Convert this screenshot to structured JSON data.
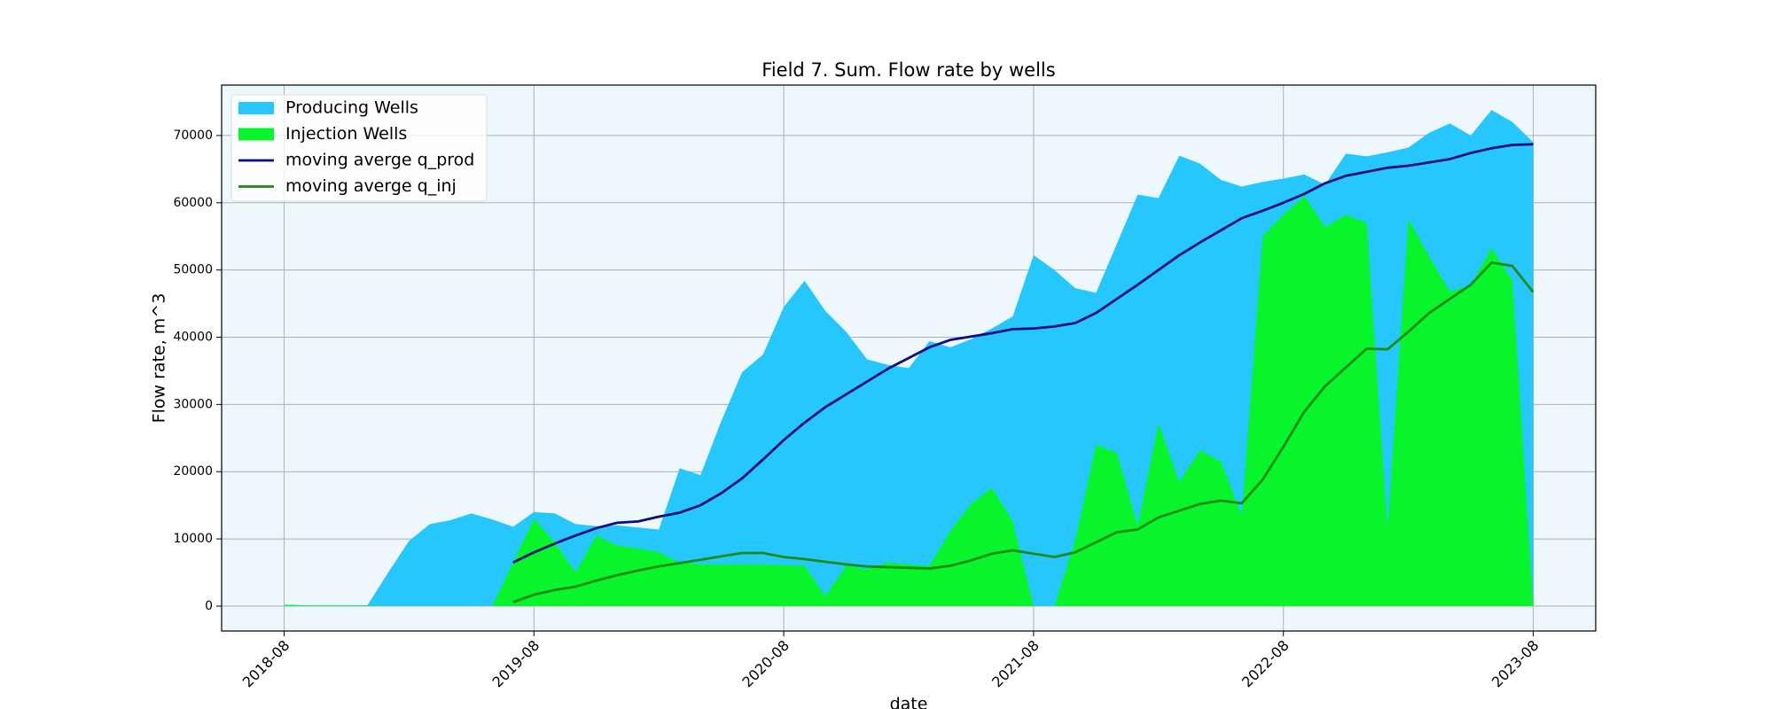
{
  "chart_data": {
    "type": "area",
    "title": "Field 7. Sum. Flow rate by wells",
    "xlabel": "date",
    "ylabel": "Flow rate, m^3",
    "x": [
      "2018-08",
      "2018-09",
      "2018-10",
      "2018-11",
      "2018-12",
      "2019-01",
      "2019-02",
      "2019-03",
      "2019-04",
      "2019-05",
      "2019-06",
      "2019-07",
      "2019-08",
      "2019-09",
      "2019-10",
      "2019-11",
      "2019-12",
      "2020-01",
      "2020-02",
      "2020-03",
      "2020-04",
      "2020-05",
      "2020-06",
      "2020-07",
      "2020-08",
      "2020-09",
      "2020-10",
      "2020-11",
      "2020-12",
      "2021-01",
      "2021-02",
      "2021-03",
      "2021-04",
      "2021-05",
      "2021-06",
      "2021-07",
      "2021-08",
      "2021-09",
      "2021-10",
      "2021-11",
      "2021-12",
      "2022-01",
      "2022-02",
      "2022-03",
      "2022-04",
      "2022-05",
      "2022-06",
      "2022-07",
      "2022-08",
      "2022-09",
      "2022-10",
      "2022-11",
      "2022-12",
      "2023-01",
      "2023-02",
      "2023-03",
      "2023-04",
      "2023-05",
      "2023-06",
      "2023-07",
      "2023-08"
    ],
    "series": [
      {
        "name": "Producing Wells",
        "kind": "area",
        "color": "#26c7fd",
        "values": [
          200,
          100,
          100,
          100,
          100,
          5000,
          9700,
          12200,
          12800,
          13800,
          12900,
          11800,
          14000,
          13800,
          12200,
          11900,
          12000,
          11700,
          11400,
          20500,
          19500,
          27500,
          34800,
          37400,
          44500,
          48400,
          43900,
          40800,
          36700,
          35900,
          35400,
          39400,
          38500,
          39700,
          41300,
          43100,
          52200,
          50000,
          47300,
          46600,
          53900,
          61200,
          60700,
          67000,
          65800,
          63400,
          62400,
          63100,
          63600,
          64200,
          62700,
          67300,
          66900,
          67500,
          68200,
          70400,
          71800,
          70000,
          73800,
          72000,
          69000
        ]
      },
      {
        "name": "Injection Wells",
        "kind": "area",
        "color": "#07f52a",
        "values": [
          200,
          100,
          100,
          100,
          100,
          0,
          0,
          0,
          0,
          0,
          0,
          6500,
          13000,
          9500,
          5000,
          10500,
          9000,
          8600,
          8000,
          6500,
          6200,
          6200,
          6200,
          6200,
          6100,
          6000,
          1500,
          6000,
          5500,
          6500,
          6200,
          6000,
          11200,
          15200,
          17600,
          12600,
          0,
          0,
          9800,
          24000,
          22800,
          12000,
          27200,
          18500,
          23200,
          21500,
          13500,
          55000,
          58200,
          61000,
          56400,
          58200,
          57000,
          11500,
          57600,
          52000,
          46800,
          47700,
          53300,
          48400,
          0
        ]
      },
      {
        "name": "moving averge q_prod",
        "kind": "line",
        "color": "#0c0c82",
        "values": [
          null,
          null,
          null,
          null,
          null,
          null,
          null,
          null,
          null,
          null,
          null,
          6500,
          8000,
          9300,
          10500,
          11600,
          12400,
          12600,
          13300,
          13900,
          15000,
          16800,
          19000,
          21800,
          24700,
          27300,
          29600,
          31500,
          33400,
          35300,
          36900,
          38500,
          39600,
          40100,
          40600,
          41200,
          41300,
          41600,
          42100,
          43600,
          45700,
          47800,
          50000,
          52200,
          54100,
          55900,
          57700,
          58800,
          60000,
          61300,
          62900,
          64000,
          64600,
          65200,
          65500,
          66000,
          66500,
          67400,
          68100,
          68600,
          68700
        ]
      },
      {
        "name": "moving averge q_inj",
        "kind": "line",
        "color": "#168c16",
        "values": [
          null,
          null,
          null,
          null,
          null,
          null,
          null,
          null,
          null,
          null,
          null,
          600,
          1700,
          2400,
          2900,
          3800,
          4600,
          5300,
          5900,
          6400,
          6900,
          7400,
          7900,
          7900,
          7300,
          7000,
          6600,
          6200,
          5900,
          5800,
          5700,
          5600,
          6000,
          6800,
          7800,
          8300,
          7800,
          7300,
          8000,
          9500,
          11000,
          11400,
          13200,
          14200,
          15200,
          15700,
          15300,
          18800,
          23700,
          28900,
          32700,
          35500,
          38300,
          38200,
          40800,
          43600,
          45700,
          47800,
          51100,
          50600,
          46700
        ]
      }
    ],
    "xlim": [
      "2018-05",
      "2023-11"
    ],
    "xticks": [
      "2018-08",
      "2019-08",
      "2020-08",
      "2021-08",
      "2022-08",
      "2023-08"
    ],
    "ylim": [
      -3700,
      77500
    ],
    "yticks": [
      0,
      10000,
      20000,
      30000,
      40000,
      50000,
      60000,
      70000
    ],
    "grid": true,
    "legend": "upper left",
    "background": "#eef7fc"
  }
}
